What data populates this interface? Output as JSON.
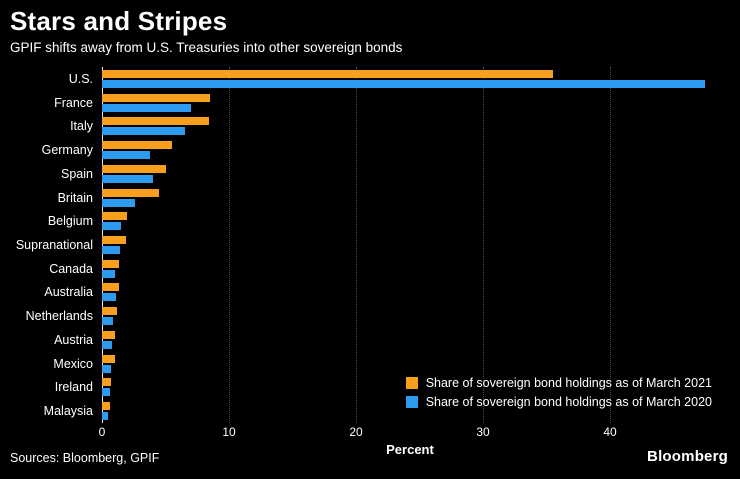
{
  "header": {
    "title": "Stars and Stripes",
    "subtitle": "GPIF shifts away from U.S. Treasuries into other sovereign bonds"
  },
  "chart_data": {
    "type": "bar",
    "orientation": "horizontal",
    "title": "Stars and Stripes",
    "subtitle": "GPIF shifts away from U.S. Treasuries into other sovereign bonds",
    "categories": [
      "U.S.",
      "France",
      "Italy",
      "Germany",
      "Spain",
      "Britain",
      "Belgium",
      "Supranational",
      "Canada",
      "Australia",
      "Netherlands",
      "Austria",
      "Mexico",
      "Ireland",
      "Malaysia"
    ],
    "series": [
      {
        "name": "Share of sovereign bond holdings as of March 2021",
        "color": "#F8A01E",
        "values": [
          35.5,
          8.5,
          8.4,
          5.5,
          5.0,
          4.5,
          2.0,
          1.9,
          1.3,
          1.3,
          1.2,
          1.0,
          1.0,
          0.7,
          0.6
        ]
      },
      {
        "name": "Share of sovereign bond holdings as of March 2020",
        "color": "#2D9BF0",
        "values": [
          47.5,
          7.0,
          6.5,
          3.8,
          4.0,
          2.6,
          1.5,
          1.4,
          1.0,
          1.1,
          0.9,
          0.8,
          0.7,
          0.6,
          0.5
        ]
      }
    ],
    "xlabel": "Percent",
    "ylabel": "",
    "xticks": [
      0,
      10,
      20,
      30,
      40
    ],
    "xlim": [
      0,
      48.5
    ],
    "grid": "vertical-dotted",
    "legend_position": "inside-bottom-right"
  },
  "footer": {
    "sources": "Sources: Bloomberg, GPIF",
    "brand": "Bloomberg"
  }
}
